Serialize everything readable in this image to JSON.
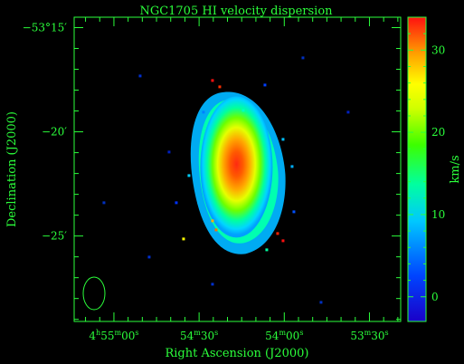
{
  "chart_data": {
    "type": "heatmap",
    "title": "NGC1705  HI velocity dispersion",
    "xlabel": "Right Ascension (J2000)",
    "ylabel": "Declination (J2000)",
    "colorbar_label": "km/s",
    "colorbar_ticks": [
      0,
      10,
      20,
      30
    ],
    "colorbar_range": [
      -3,
      34
    ],
    "x_ticks": [
      {
        "value_s": 60,
        "h": "4",
        "m": "55",
        "s": "00",
        "full": true
      },
      {
        "value_s": 30,
        "m": "54",
        "s": "30"
      },
      {
        "value_s": 0,
        "m": "54",
        "s": "00"
      },
      {
        "value_s": -30,
        "m": "53",
        "s": "30"
      }
    ],
    "xlim_s": [
      74,
      -41
    ],
    "y_ticks": [
      {
        "value_min": -15,
        "text": "−53°15′"
      },
      {
        "value_min": -20,
        "text": "−20′"
      },
      {
        "value_min": -25,
        "text": "−25′"
      }
    ],
    "ylim_min": [
      -29.1,
      -14.5
    ],
    "source": {
      "ra_center_s": 16.2,
      "dec_center_min": -21.6,
      "peak_kms": 31,
      "edge_kms": 10
    },
    "beam": "ellipse, lower-left"
  },
  "colors": {
    "axis": "#2bff3b",
    "background": "#000000",
    "colormap": [
      "#1a00c8",
      "#0055ff",
      "#00c8ff",
      "#00ff9a",
      "#3cff00",
      "#c8ff00",
      "#ffff00",
      "#ffb000",
      "#ff6000",
      "#ff1010"
    ]
  }
}
